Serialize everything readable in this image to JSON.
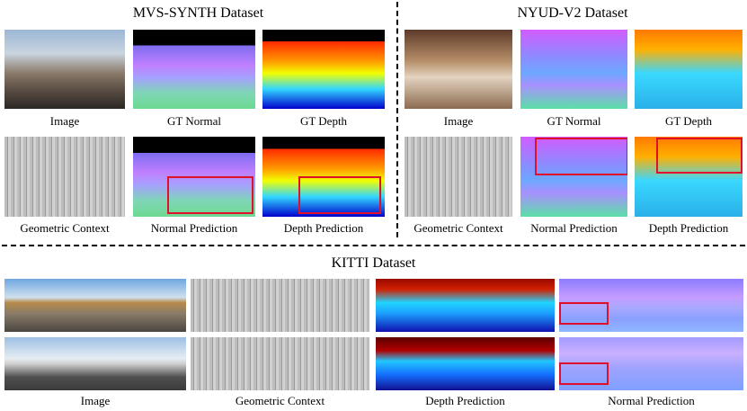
{
  "sections": {
    "mvs": {
      "title": "MVS-SYNTH Dataset",
      "row1_captions": [
        "Image",
        "GT Normal",
        "GT Depth"
      ],
      "row2_captions": [
        "Geometric Context",
        "Normal Prediction",
        "Depth Prediction"
      ]
    },
    "nyud": {
      "title": "NYUD-V2 Dataset",
      "row1_captions": [
        "Image",
        "GT Normal",
        "GT Depth"
      ],
      "row2_captions": [
        "Geometric Context",
        "Normal Prediction",
        "Depth Prediction"
      ]
    },
    "kitti": {
      "title": "KITTI Dataset",
      "captions": [
        "Image",
        "Geometric Context",
        "Depth Prediction",
        "Normal Prediction"
      ]
    }
  },
  "colors": {
    "highlight_box": "#e0102a",
    "separator": "#000000"
  }
}
